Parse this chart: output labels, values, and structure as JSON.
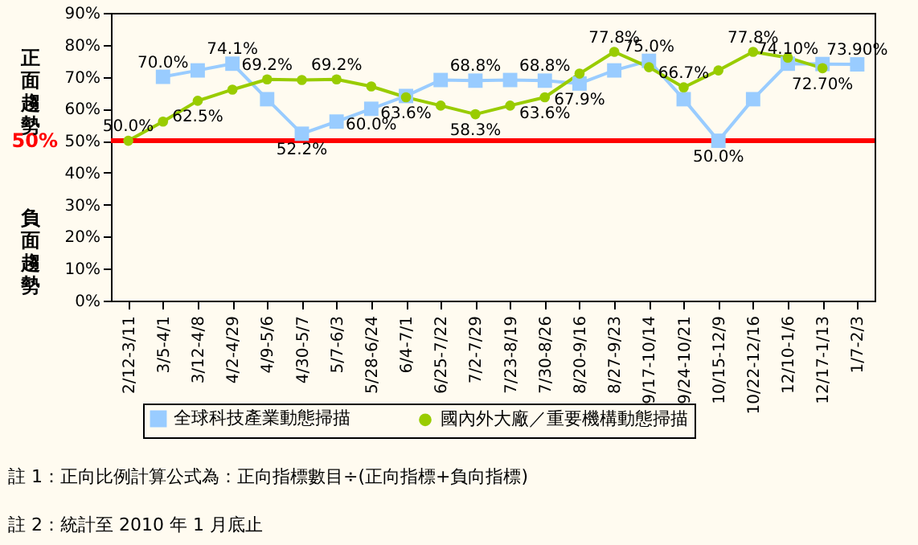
{
  "chart_data": {
    "type": "line",
    "categories": [
      "2/12-3/11",
      "3/5-4/1",
      "3/12-4/8",
      "4/2-4/29",
      "4/9-5/6",
      "4/30-5/7",
      "5/7-6/3",
      "5/28-6/24",
      "6/4-7/1",
      "6/25-7/22",
      "7/2-7/29",
      "7/23-8/19",
      "7/30-8/26",
      "8/20-9/16",
      "8/27-9/23",
      "9/17-10/14",
      "9/24-10/21",
      "10/15-12/9",
      "10/22-12/16",
      "12/10-1/6",
      "12/17-1/13",
      "1/7-2/3"
    ],
    "series": [
      {
        "name": "全球科技產業動態掃描",
        "color": "#99ccff",
        "marker": "square",
        "values": [
          null,
          70.0,
          72,
          74.1,
          63,
          52.2,
          56,
          60.0,
          64,
          69,
          68.8,
          69,
          68.8,
          67.9,
          72,
          75.0,
          63,
          50.0,
          63,
          74.1,
          74,
          73.9
        ],
        "value_labels": [
          null,
          "70.0%",
          null,
          "74.1%",
          null,
          "52.2%",
          null,
          "60.0%",
          null,
          null,
          "68.8%",
          null,
          "68.8%",
          "67.9%",
          null,
          "75.0%",
          null,
          "50.0%",
          null,
          "74.10%",
          null,
          "73.90%"
        ]
      },
      {
        "name": "國內外大廠／重要機構動態掃描",
        "color": "#99cc00",
        "marker": "circle",
        "values": [
          50.0,
          56,
          62.5,
          66,
          69.2,
          69,
          69.2,
          67,
          63.6,
          61,
          58.3,
          61,
          63.6,
          71,
          77.8,
          73,
          66.7,
          72,
          77.8,
          76,
          72.7,
          null
        ],
        "value_labels": [
          "50.0%",
          null,
          "62.5%",
          null,
          "69.2%",
          null,
          "69.2%",
          null,
          "63.6%",
          null,
          "58.3%",
          null,
          "63.6%",
          null,
          "77.8%",
          null,
          "66.7%",
          null,
          "77.8%",
          null,
          "72.70%",
          null
        ]
      }
    ],
    "ylim": [
      0,
      90
    ],
    "yticks": [
      {
        "value": 0,
        "label": "0%"
      },
      {
        "value": 10,
        "label": "10%"
      },
      {
        "value": 20,
        "label": "20%"
      },
      {
        "value": 30,
        "label": "30%"
      },
      {
        "value": 40,
        "label": "40%"
      },
      {
        "value": 50,
        "label": "50%"
      },
      {
        "value": 60,
        "label": "60%"
      },
      {
        "value": 70,
        "label": "70%"
      },
      {
        "value": 80,
        "label": "80%"
      },
      {
        "value": 90,
        "label": "90%"
      }
    ],
    "ref_lines": [
      {
        "axis": "y",
        "value": 50,
        "label": "50%",
        "color": "#ff0000"
      }
    ],
    "annotations": [
      "正面趨勢",
      "負面趨勢",
      "註 1：正向比例計算公式為：正向指標數目÷(正向指標+負向指標)",
      "註 2：統計至 2010 年 1 月底止"
    ],
    "grid": false,
    "legend": "bottom"
  }
}
